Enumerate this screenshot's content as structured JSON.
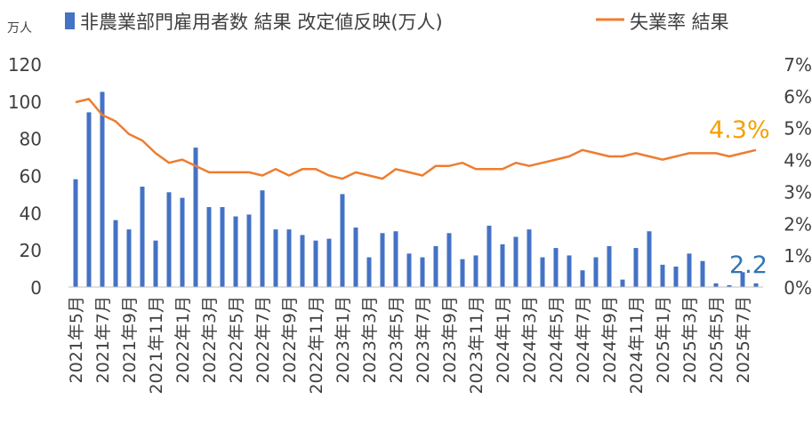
{
  "chart_data": {
    "type": "bar+line",
    "unit_left": "万人",
    "legend": [
      {
        "label": "非農業部門雇用者数 結果 改定値反映(万人)",
        "kind": "bar",
        "color": "#4472C4"
      },
      {
        "label": "失業率 結果",
        "kind": "line",
        "color": "#ED7D31"
      }
    ],
    "categories": [
      "2021年5月",
      "2021年6月",
      "2021年7月",
      "2021年8月",
      "2021年9月",
      "2021年10月",
      "2021年11月",
      "2021年12月",
      "2022年1月",
      "2022年2月",
      "2022年3月",
      "2022年4月",
      "2022年5月",
      "2022年6月",
      "2022年7月",
      "2022年8月",
      "2022年9月",
      "2022年10月",
      "2022年11月",
      "2022年12月",
      "2023年1月",
      "2023年2月",
      "2023年3月",
      "2023年4月",
      "2023年5月",
      "2023年6月",
      "2023年7月",
      "2023年8月",
      "2023年9月",
      "2023年10月",
      "2023年11月",
      "2023年12月",
      "2024年1月",
      "2024年2月",
      "2024年3月",
      "2024年4月",
      "2024年5月",
      "2024年6月",
      "2024年7月",
      "2024年8月",
      "2024年9月",
      "2024年10月",
      "2024年11月",
      "2024年12月",
      "2025年1月",
      "2025年2月",
      "2025年3月",
      "2025年4月",
      "2025年5月",
      "2025年6月",
      "2025年7月",
      "2025年8月"
    ],
    "x_tick_labels": [
      "2021年5月",
      "2021年7月",
      "2021年9月",
      "2021年11月",
      "2022年1月",
      "2022年3月",
      "2022年5月",
      "2022年7月",
      "2022年9月",
      "2022年11月",
      "2023年1月",
      "2023年3月",
      "2023年5月",
      "2023年7月",
      "2023年9月",
      "2023年11月",
      "2024年1月",
      "2024年3月",
      "2024年5月",
      "2024年7月",
      "2024年9月",
      "2024年11月",
      "2025年1月",
      "2025年3月",
      "2025年5月",
      "2025年7月"
    ],
    "series": [
      {
        "name": "非農業部門雇用者数 結果 改定値反映(万人)",
        "axis": "left",
        "values": [
          58,
          94,
          105,
          36,
          31,
          54,
          25,
          51,
          48,
          75,
          43,
          43,
          38,
          39,
          52,
          31,
          31,
          28,
          25,
          26,
          50,
          32,
          16,
          29,
          30,
          18,
          16,
          22,
          29,
          15,
          17,
          33,
          23,
          27,
          31,
          16,
          21,
          17,
          9,
          16,
          22,
          4,
          21,
          30,
          12,
          11,
          18,
          14,
          2,
          1,
          8,
          2
        ]
      },
      {
        "name": "失業率 結果",
        "axis": "right",
        "values": [
          5.8,
          5.9,
          5.4,
          5.2,
          4.8,
          4.6,
          4.2,
          3.9,
          4.0,
          3.8,
          3.6,
          3.6,
          3.6,
          3.6,
          3.5,
          3.7,
          3.5,
          3.7,
          3.7,
          3.5,
          3.4,
          3.6,
          3.5,
          3.4,
          3.7,
          3.6,
          3.5,
          3.8,
          3.8,
          3.9,
          3.7,
          3.7,
          3.7,
          3.9,
          3.8,
          3.9,
          4.0,
          4.1,
          4.3,
          4.2,
          4.1,
          4.1,
          4.2,
          4.1,
          4.0,
          4.1,
          4.2,
          4.2,
          4.2,
          4.1,
          4.2,
          4.3
        ]
      }
    ],
    "y_left": {
      "min": 0,
      "max": 120,
      "ticks": [
        0,
        20,
        40,
        60,
        80,
        100,
        120
      ]
    },
    "y_right": {
      "min": 0,
      "max": 7,
      "ticks": [
        "0%",
        "1%",
        "2%",
        "3%",
        "4%",
        "5%",
        "6%",
        "7%"
      ]
    },
    "annotations": [
      {
        "text": "4.3%",
        "color": "#F5A000",
        "series": "失業率 結果"
      },
      {
        "text": "2.2",
        "color": "#2E75B6",
        "series": "非農業部門雇用者数 結果 改定値反映(万人)"
      }
    ],
    "grid": false,
    "legend_placement": "top"
  }
}
